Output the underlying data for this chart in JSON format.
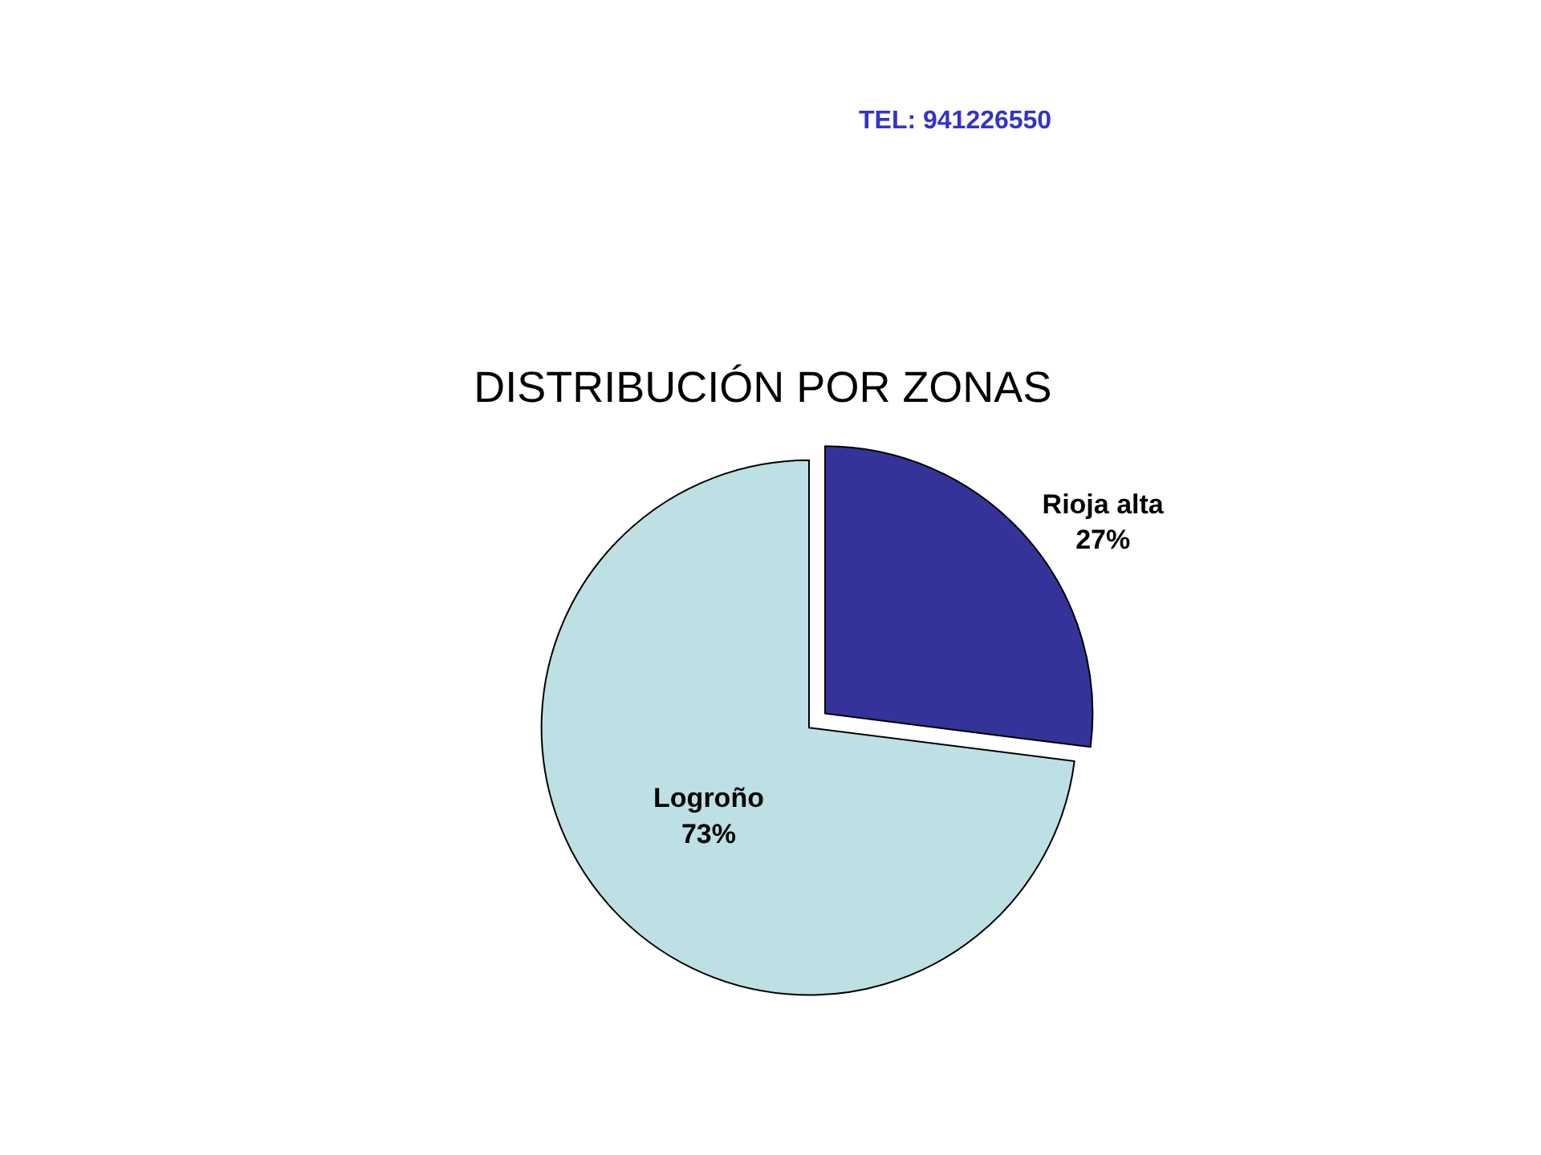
{
  "chart_data": {
    "type": "pie",
    "title": "DISTRIBUCIÓN POR ZONAS",
    "categories": [
      "Rioja alta",
      "Logroño"
    ],
    "values": [
      27,
      73
    ],
    "value_labels": [
      "27%",
      "73%"
    ],
    "colors": [
      "#333399",
      "#bde0e4"
    ],
    "annotations": [
      "TEL: 941226550"
    ],
    "legend": false
  }
}
